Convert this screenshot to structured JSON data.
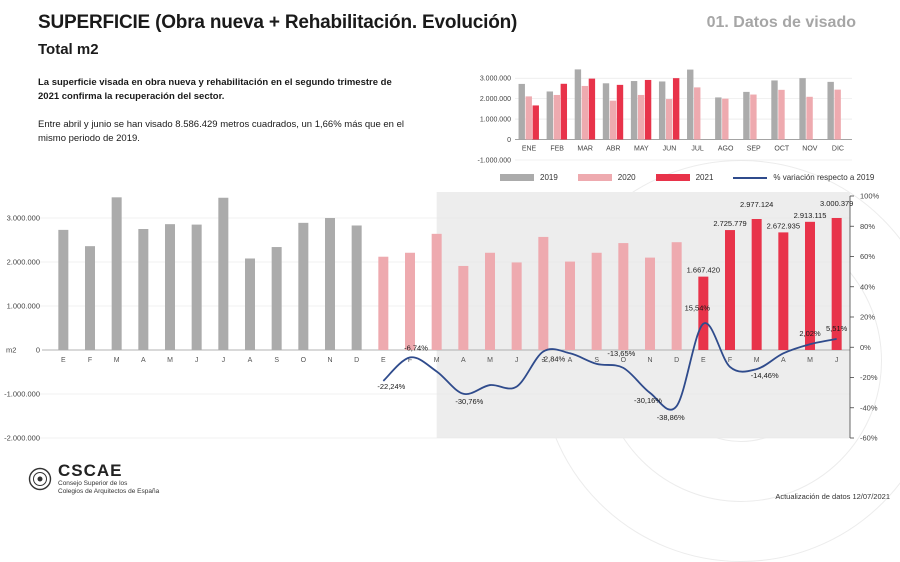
{
  "header": {
    "title": "SUPERFICIE (Obra nueva + Rehabilitación. Evolución)",
    "subtitle": "Total m2",
    "section": "01. Datos de visado"
  },
  "text": {
    "p1": "La superficie visada en obra nueva y rehabilitación en el segundo trimestre de 2021 confirma la recuperación del sector.",
    "p2": "Entre abril y junio se han visado 8.586.429 metros cuadrados, un 1,66% más que en el mismo periodo de 2019."
  },
  "footer": {
    "logo_name": "CSCAE",
    "logo_sub_1": "Consejo Superior de los",
    "logo_sub_2": "Colegios de Arquitectos de España",
    "update": "Actualización de datos 12/07/2021"
  },
  "colors": {
    "y2019": "#ababab",
    "y2020": "#eeaaaf",
    "y2021": "#e8334a",
    "line": "#2f4b8c",
    "shade": "#ededed"
  },
  "chart_data": [
    {
      "type": "bar",
      "categories": [
        "ENE",
        "FEB",
        "MAR",
        "ABR",
        "MAY",
        "JUN",
        "JUL",
        "AGO",
        "SEP",
        "OCT",
        "NOV",
        "DIC"
      ],
      "series": [
        {
          "name": "2019",
          "values": [
            2720000,
            2350000,
            3430000,
            2750000,
            2860000,
            2840000,
            3420000,
            2060000,
            2330000,
            2890000,
            3000000,
            2820000
          ]
        },
        {
          "name": "2020",
          "values": [
            2110000,
            2180000,
            2620000,
            1900000,
            2180000,
            1980000,
            2550000,
            2000000,
            2200000,
            2430000,
            2090000,
            2440000
          ]
        },
        {
          "name": "2021",
          "values": [
            1667420,
            2725779,
            2977124,
            2672935,
            2913115,
            3000379,
            null,
            null,
            null,
            null,
            null,
            null
          ]
        }
      ],
      "yticks": [
        "-1.000.000",
        "0",
        "1.000.000",
        "2.000.000",
        "3.000.000"
      ],
      "ylim": [
        -1000000,
        3400000
      ],
      "legend": [
        "2019",
        "2020",
        "2021",
        "% variación respecto a 2019"
      ],
      "legend_position": "bottom"
    },
    {
      "type": "bar+line",
      "ylabel": "m2",
      "categories": [
        "E",
        "F",
        "M",
        "A",
        "M",
        "J",
        "J",
        "A",
        "S",
        "O",
        "N",
        "D",
        "E",
        "F",
        "M",
        "A",
        "M",
        "J",
        "J",
        "A",
        "S",
        "O",
        "N",
        "D",
        "E",
        "F",
        "M",
        "A",
        "M",
        "J"
      ],
      "values": [
        2730000,
        2360000,
        3470000,
        2750000,
        2860000,
        2850000,
        3460000,
        2080000,
        2340000,
        2890000,
        3000000,
        2830000,
        2120000,
        2210000,
        2640000,
        1910000,
        2210000,
        1990000,
        2570000,
        2010000,
        2210000,
        2430000,
        2100000,
        2450000,
        1667420,
        2725779,
        2977124,
        2672935,
        2913115,
        3000379
      ],
      "groups": [
        "2019",
        "2019",
        "2019",
        "2019",
        "2019",
        "2019",
        "2019",
        "2019",
        "2019",
        "2019",
        "2019",
        "2019",
        "2020",
        "2020",
        "2020",
        "2020",
        "2020",
        "2020",
        "2020",
        "2020",
        "2020",
        "2020",
        "2020",
        "2020",
        "2021",
        "2021",
        "2021",
        "2021",
        "2021",
        "2021"
      ],
      "bar_labels": [
        "",
        "",
        "",
        "",
        "",
        "",
        "",
        "",
        "",
        "",
        "",
        "",
        "",
        "",
        "",
        "",
        "",
        "",
        "",
        "",
        "",
        "",
        "",
        "",
        "1.667.420",
        "2.725.779",
        "2.977.124",
        "2.672.935",
        "2.913.115",
        "3.000.379"
      ],
      "ylim": [
        -2000000,
        3500000
      ],
      "yticks_left": [
        "-2.000.000",
        "-1.000.000",
        "0",
        "1.000.000",
        "2.000.000",
        "3.000.000"
      ],
      "line_name": "% variación respecto a 2019",
      "line_values": [
        -22.24,
        -6.74,
        -16,
        -30.76,
        -25,
        -26,
        -2.84,
        -4,
        -11,
        -13.65,
        -30.16,
        -38.86,
        15.54,
        -13,
        -14.46,
        -4,
        2.02,
        5.51
      ],
      "line_labels": [
        "-22,24%",
        "-6,74%",
        "",
        "-30,76%",
        "",
        "",
        "-2,84%",
        "",
        "",
        "-13,65%",
        "-30,16%",
        "-38,86%",
        "15,54%",
        "",
        "-14,46%",
        "",
        "2,02%",
        "5,51%"
      ],
      "y2lim": [
        -60,
        100
      ],
      "yticks_right": [
        "-60%",
        "-40%",
        "-20%",
        "0%",
        "20%",
        "40%",
        "60%",
        "80%",
        "100%"
      ]
    }
  ]
}
